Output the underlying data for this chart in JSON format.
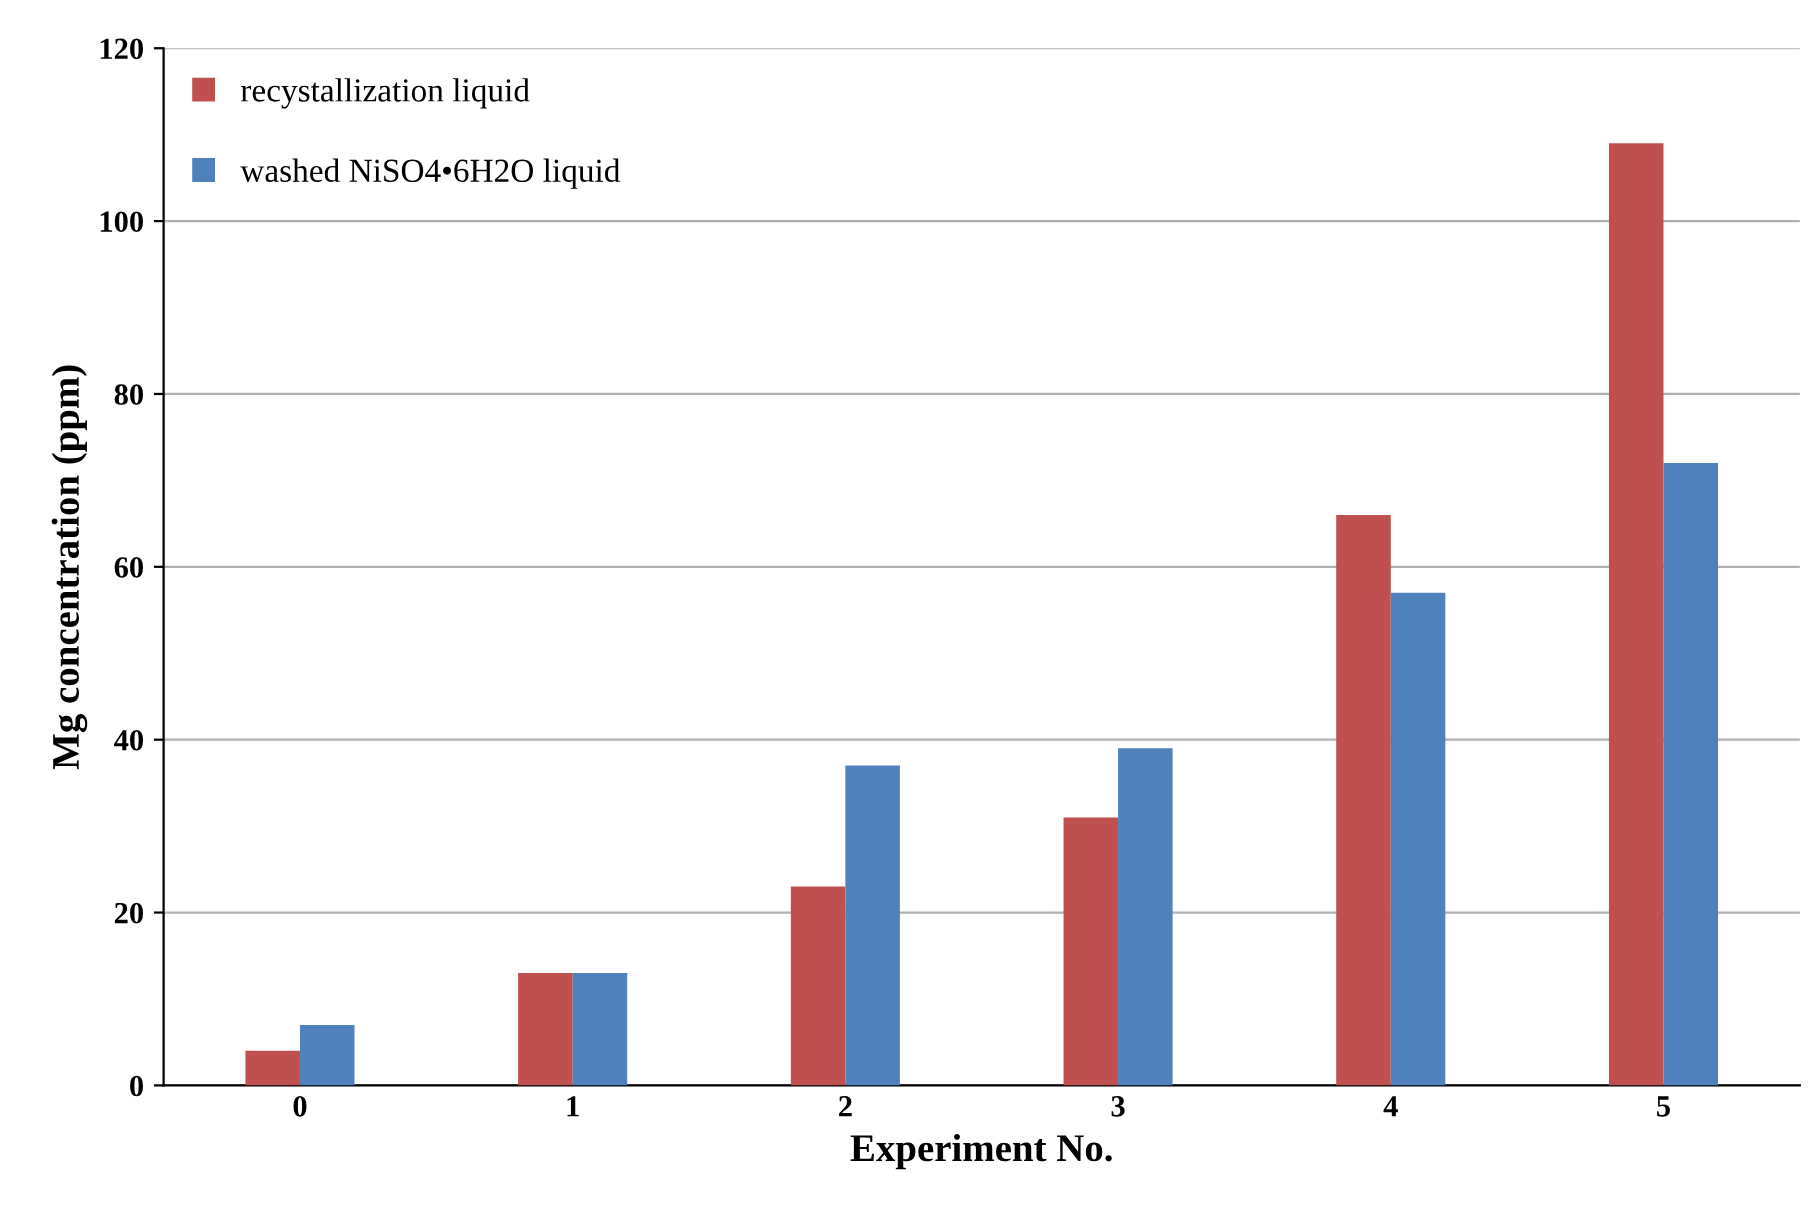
{
  "chart_data": {
    "type": "bar",
    "xlabel": "Experiment No.",
    "ylabel": "Mg concentration (ppm)",
    "categories": [
      "0",
      "1",
      "2",
      "3",
      "4",
      "5"
    ],
    "series": [
      {
        "name": "recystallization liquid",
        "color": "#c0504d",
        "values": [
          4,
          13,
          23,
          31,
          66,
          109
        ]
      },
      {
        "name": "washed NiSO4•6H2O liquid",
        "color": "#4f81bd",
        "values": [
          7,
          13,
          37,
          39,
          57,
          72
        ]
      }
    ],
    "ylim": [
      0,
      120
    ],
    "yticks": [
      0,
      20,
      40,
      60,
      80,
      100,
      120
    ],
    "grid": "y",
    "legend": "top left"
  }
}
